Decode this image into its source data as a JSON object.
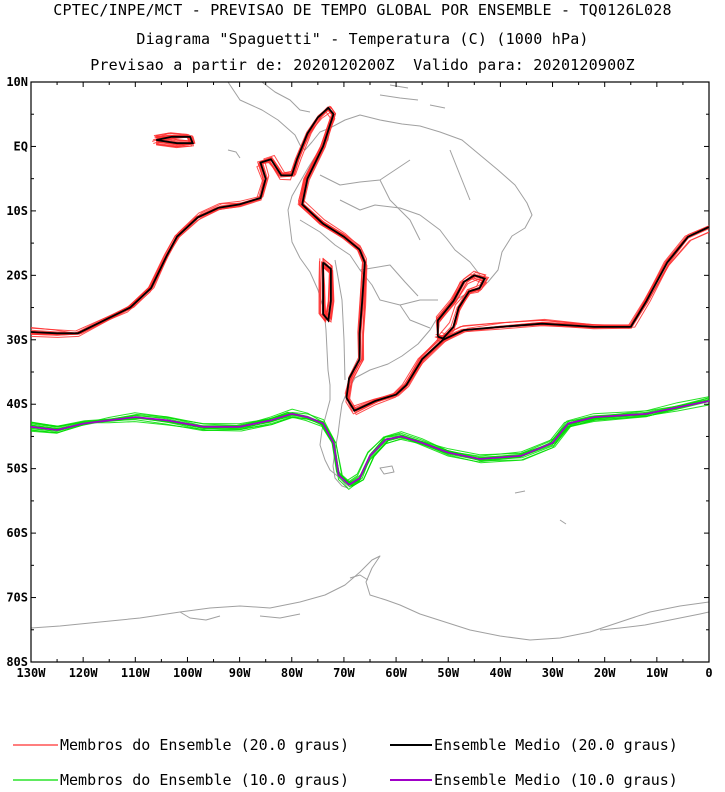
{
  "header": {
    "line1": "CPTEC/INPE/MCT - PREVISAO DE TEMPO GLOBAL POR ENSEMBLE - TQ0126L028",
    "line2": "Diagrama \"Spaguetti\" - Temperatura (C) (1000 hPa)",
    "line3": "Previsao a partir de: 2020120200Z  Valido para: 2020120900Z"
  },
  "map": {
    "lon_range": [
      -130,
      0
    ],
    "lat_range": [
      -80,
      10
    ],
    "lat_ticks": [
      "10N",
      "EQ",
      "10S",
      "20S",
      "30S",
      "40S",
      "50S",
      "60S",
      "70S",
      "80S"
    ],
    "lon_ticks": [
      "130W",
      "120W",
      "110W",
      "100W",
      "90W",
      "80W",
      "70W",
      "60W",
      "50W",
      "40W",
      "30W",
      "20W",
      "10W",
      "0"
    ],
    "coast_color": "#a0a0a0"
  },
  "colors": {
    "member_20": "#ff3030",
    "mean_20": "#000000",
    "member_10": "#00dd00",
    "mean_10": "#a000c8"
  },
  "legend": {
    "members_20": "Membros do Ensemble (20.0 graus)",
    "mean_20": "Ensemble Medio (20.0 graus)",
    "members_10": "Membros do Ensemble (10.0 graus)",
    "mean_10": "Ensemble Medio (10.0 graus)"
  },
  "chart_data": {
    "type": "line",
    "contours": [
      {
        "level": "20.0",
        "kind": "mean",
        "paths": [
          [
            [
              -130,
              -28.8
            ],
            [
              -125,
              -29
            ],
            [
              -121,
              -29
            ],
            [
              -116,
              -27
            ],
            [
              -111,
              -25
            ],
            [
              -107,
              -22
            ],
            [
              -104,
              -17
            ],
            [
              -102,
              -14
            ],
            [
              -98,
              -11
            ],
            [
              -94,
              -9.5
            ],
            [
              -90,
              -9
            ],
            [
              -86,
              -8
            ],
            [
              -85,
              -5
            ],
            [
              -86,
              -2.5
            ],
            [
              -84,
              -2
            ],
            [
              -82,
              -4.5
            ],
            [
              -80,
              -4.5
            ],
            [
              -79,
              -2
            ],
            [
              -77,
              2
            ],
            [
              -75,
              4.5
            ],
            [
              -73,
              6
            ],
            [
              -72,
              5
            ],
            [
              -74,
              0
            ],
            [
              -77,
              -5
            ],
            [
              -78,
              -9
            ],
            [
              -74,
              -12
            ],
            [
              -70,
              -14
            ],
            [
              -67,
              -16
            ],
            [
              -66,
              -18
            ],
            [
              -66.5,
              -24
            ],
            [
              -67,
              -29
            ],
            [
              -67,
              -33
            ],
            [
              -69,
              -36
            ],
            [
              -69.5,
              -39
            ],
            [
              -68,
              -41
            ],
            [
              -64,
              -39.5
            ],
            [
              -60,
              -38.5
            ],
            [
              -58,
              -37
            ],
            [
              -55,
              -33
            ],
            [
              -51,
              -30
            ],
            [
              -47,
              -28.5
            ],
            [
              -40,
              -28
            ],
            [
              -32,
              -27.5
            ],
            [
              -22,
              -28
            ],
            [
              -15,
              -28
            ],
            [
              -12,
              -24
            ],
            [
              -8,
              -18
            ],
            [
              -4,
              -14
            ],
            [
              0,
              -12.5
            ]
          ],
          [
            [
              -52,
              -29.5
            ],
            [
              -52,
              -27
            ],
            [
              -49,
              -24
            ],
            [
              -47,
              -21
            ],
            [
              -45,
              -20
            ],
            [
              -43,
              -20.5
            ],
            [
              -44,
              -22
            ],
            [
              -46,
              -22.5
            ],
            [
              -48,
              -25
            ],
            [
              -49,
              -28
            ],
            [
              -51,
              -29.8
            ],
            [
              -52,
              -29.5
            ]
          ],
          [
            [
              -74,
              -18
            ],
            [
              -72.5,
              -19
            ],
            [
              -72.5,
              -24
            ],
            [
              -73,
              -27
            ],
            [
              -74,
              -26
            ],
            [
              -74,
              -21
            ],
            [
              -74,
              -18
            ]
          ],
          [
            [
              -106,
              1
            ],
            [
              -102,
              0.5
            ],
            [
              -99,
              0.5
            ],
            [
              -99.5,
              1.5
            ],
            [
              -103,
              1.5
            ],
            [
              -106,
              1
            ]
          ]
        ]
      },
      {
        "level": "10.0",
        "kind": "mean",
        "paths": [
          [
            [
              -130,
              -43.5
            ],
            [
              -125,
              -44
            ],
            [
              -120,
              -43
            ],
            [
              -115,
              -42.5
            ],
            [
              -110,
              -42
            ],
            [
              -104,
              -42.5
            ],
            [
              -97,
              -43.5
            ],
            [
              -90,
              -43.5
            ],
            [
              -84,
              -42.5
            ],
            [
              -80,
              -41.5
            ],
            [
              -77,
              -42
            ],
            [
              -74,
              -43
            ],
            [
              -72,
              -46
            ],
            [
              -71,
              -51
            ],
            [
              -69,
              -52.5
            ],
            [
              -67,
              -51.5
            ],
            [
              -65,
              -48
            ],
            [
              -62,
              -45.5
            ],
            [
              -59,
              -45
            ],
            [
              -55,
              -46
            ],
            [
              -50,
              -47.5
            ],
            [
              -44,
              -48.5
            ],
            [
              -36,
              -48
            ],
            [
              -30,
              -46
            ],
            [
              -27,
              -43
            ],
            [
              -22,
              -42
            ],
            [
              -12,
              -41.5
            ],
            [
              -6,
              -40.5
            ],
            [
              0,
              -39.5
            ]
          ]
        ]
      }
    ]
  }
}
